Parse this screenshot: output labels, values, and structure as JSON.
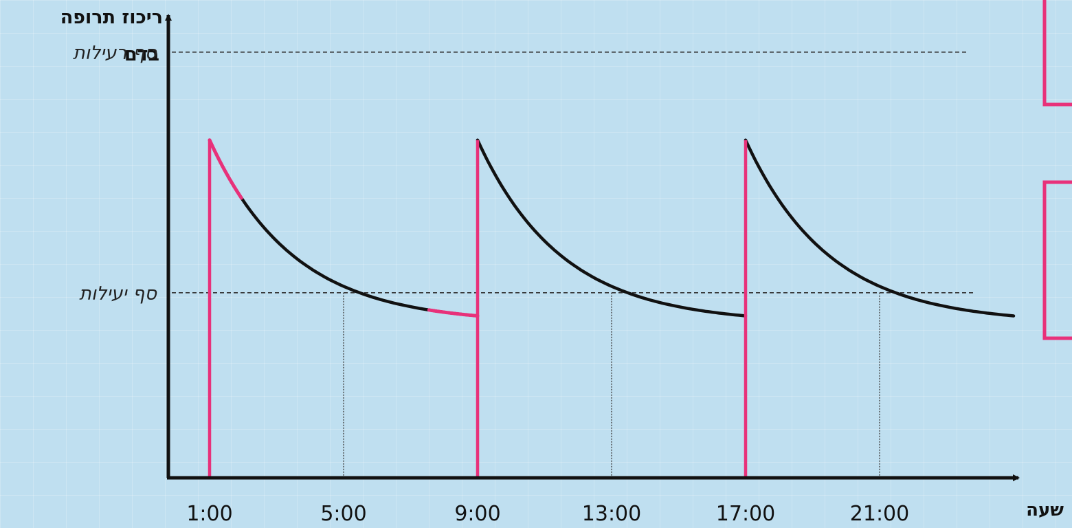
{
  "chart_data": {
    "type": "line",
    "ylabel_lines": [
      "ריכוז תרופה",
      "בדם"
    ],
    "xlabel": "שעה",
    "x_ticks": [
      "1:00",
      "5:00",
      "9:00",
      "13:00",
      "17:00",
      "21:00"
    ],
    "x_tick_values": [
      1,
      5,
      9,
      13,
      17,
      21
    ],
    "xlim": [
      0,
      25
    ],
    "ylim": [
      0,
      100
    ],
    "thresholds": [
      {
        "label": "סף רעילות",
        "value": 92
      },
      {
        "label": "סף יעילות",
        "value": 40
      }
    ],
    "doses": [
      {
        "x": 1,
        "peak": 73,
        "trough": 35
      },
      {
        "x": 9,
        "peak": 73,
        "trough": 35
      },
      {
        "x": 17,
        "peak": 73,
        "trough": 35
      }
    ],
    "end_x": 25,
    "colors": {
      "background": "#bfdff0",
      "curve": "#111111",
      "highlight": "#e8317a",
      "axis": "#111111"
    }
  }
}
